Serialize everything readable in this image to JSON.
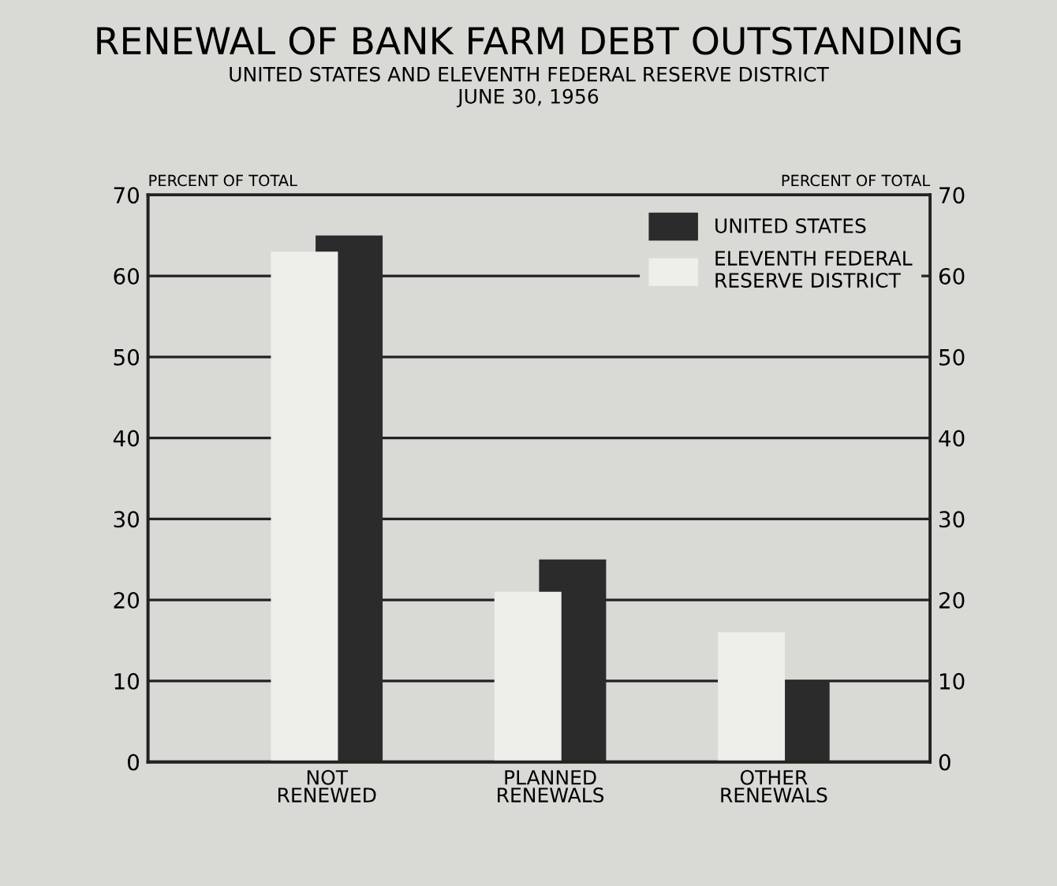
{
  "chart_data": {
    "type": "bar",
    "title": "RENEWAL OF BANK FARM DEBT OUTSTANDING",
    "subtitle": "UNITED STATES AND ELEVENTH FEDERAL RESERVE DISTRICT\nJUNE 30, 1956",
    "ylabel": "PERCENT OF TOTAL",
    "y2label": "PERCENT OF TOTAL",
    "categories": [
      "NOT\nRENEWED",
      "PLANNED\nRENEWALS",
      "OTHER\nRENEWALS"
    ],
    "series": [
      {
        "name": "UNITED STATES",
        "color": "#2b2b2b",
        "values": [
          65,
          25,
          10
        ]
      },
      {
        "name": "ELEVENTH FEDERAL\nRESERVE DISTRICT",
        "color": "#eeeeea",
        "values": [
          63,
          21,
          16
        ]
      }
    ],
    "ylim": [
      0,
      70
    ],
    "yticks": [
      0,
      10,
      20,
      30,
      40,
      50,
      60,
      70
    ],
    "y2lim": [
      0,
      70
    ],
    "y2ticks": [
      0,
      10,
      20,
      30,
      40,
      50,
      60,
      70
    ],
    "grid": "y",
    "legend": "top right"
  }
}
